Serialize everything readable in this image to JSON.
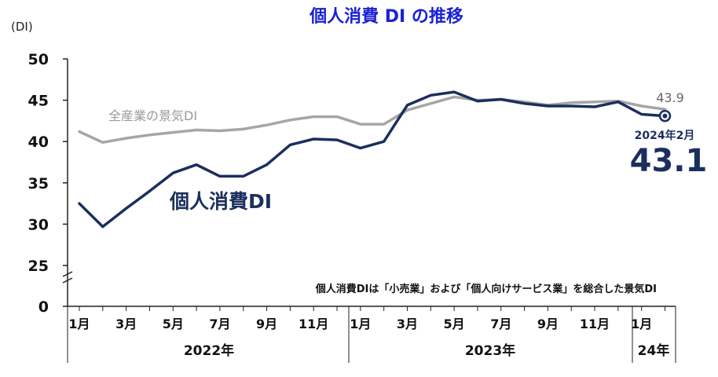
{
  "chart_data": {
    "type": "line",
    "title": "個人消費 DI の推移",
    "ylabel": "(DI)",
    "ylim": [
      0,
      50
    ],
    "yticks": [
      "0",
      "25",
      "30",
      "35",
      "40",
      "45",
      "50"
    ],
    "y_axis_break": true,
    "x_tick_labels": [
      "1月",
      "3月",
      "5月",
      "7月",
      "9月",
      "11月",
      "1月",
      "3月",
      "5月",
      "7月",
      "9月",
      "11月",
      "1月"
    ],
    "years": [
      "2022年",
      "2023年",
      "24年"
    ],
    "x": [
      "2022-01",
      "2022-02",
      "2022-03",
      "2022-04",
      "2022-05",
      "2022-06",
      "2022-07",
      "2022-08",
      "2022-09",
      "2022-10",
      "2022-11",
      "2022-12",
      "2023-01",
      "2023-02",
      "2023-03",
      "2023-04",
      "2023-05",
      "2023-06",
      "2023-07",
      "2023-08",
      "2023-09",
      "2023-10",
      "2023-11",
      "2023-12",
      "2024-01",
      "2024-02"
    ],
    "series": [
      {
        "name": "全産業の景気DI",
        "color": "#a6a6a6",
        "values": [
          41.2,
          39.9,
          40.4,
          40.8,
          41.1,
          41.4,
          41.3,
          41.5,
          42.0,
          42.6,
          43.0,
          43.0,
          42.1,
          42.1,
          43.8,
          44.6,
          45.4,
          45.0,
          45.1,
          44.8,
          44.4,
          44.7,
          44.8,
          44.9,
          44.3,
          43.9
        ]
      },
      {
        "name": "個人消費DI",
        "color": "#1b2f5e",
        "values": [
          32.5,
          29.7,
          31.9,
          34.0,
          36.2,
          37.2,
          35.8,
          35.8,
          37.2,
          39.6,
          40.3,
          40.2,
          39.2,
          40.0,
          44.4,
          45.6,
          46.0,
          44.9,
          45.1,
          44.6,
          44.3,
          44.3,
          44.2,
          44.8,
          43.3,
          43.1
        ]
      }
    ],
    "end_labels": {
      "gray_value": "43.9",
      "date": "2024年2月",
      "navy_value": "43.1"
    },
    "annotation": "個人消費DIは「小売業」および「個人向けサービス業」を総合した景気DI",
    "grid": false,
    "legend": "inline"
  }
}
